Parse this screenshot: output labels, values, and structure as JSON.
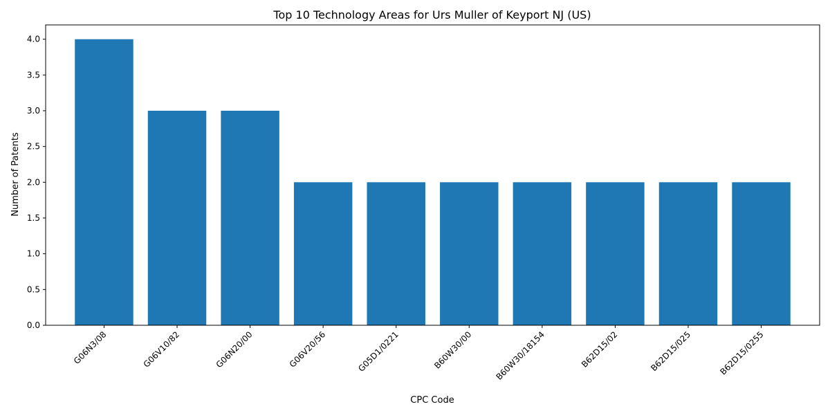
{
  "chart_data": {
    "type": "bar",
    "title": "Top 10 Technology Areas for Urs Muller of Keyport NJ (US)",
    "xlabel": "CPC Code",
    "ylabel": "Number of Patents",
    "categories": [
      "G06N3/08",
      "G06V10/82",
      "G06N20/00",
      "G06V20/56",
      "G05D1/0221",
      "B60W30/00",
      "B60W30/18154",
      "B62D15/02",
      "B62D15/025",
      "B62D15/0255"
    ],
    "values": [
      4,
      3,
      3,
      2,
      2,
      2,
      2,
      2,
      2,
      2
    ],
    "ylim": [
      0,
      4.2
    ],
    "yticks": [
      0.0,
      0.5,
      1.0,
      1.5,
      2.0,
      2.5,
      3.0,
      3.5,
      4.0
    ],
    "grid": false,
    "legend": "none",
    "bar_color": "#1f77b4"
  }
}
